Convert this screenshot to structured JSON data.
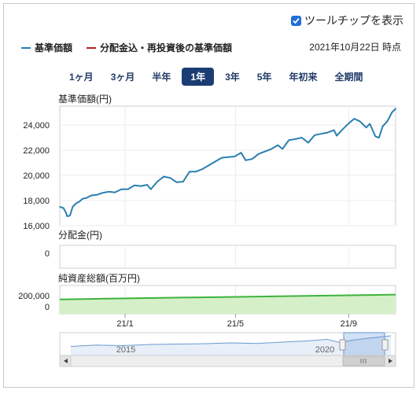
{
  "tooltip_toggle": {
    "label": "ツールチップを表示",
    "checked": true
  },
  "legend": [
    {
      "label": "基準価額",
      "color": "#2a7fb0"
    },
    {
      "label": "分配金込・再投資後の基準価額",
      "color": "#b22222"
    }
  ],
  "as_of": "2021年10月22日 時点",
  "periods": [
    {
      "label": "1ヶ月",
      "active": false
    },
    {
      "label": "3ヶ月",
      "active": false
    },
    {
      "label": "半年",
      "active": false
    },
    {
      "label": "1年",
      "active": true
    },
    {
      "label": "3年",
      "active": false
    },
    {
      "label": "5年",
      "active": false
    },
    {
      "label": "年初来",
      "active": false
    },
    {
      "label": "全期間",
      "active": false
    }
  ],
  "chart_data": [
    {
      "type": "line",
      "title": "基準価額(円)",
      "x_tick_labels": [
        "21/1",
        "21/5",
        "21/9"
      ],
      "ylim": [
        16000,
        25500
      ],
      "y_ticks": [
        "16,000",
        "18,000",
        "20,000",
        "22,000",
        "24,000"
      ],
      "y_tick_values": [
        16000,
        18000,
        20000,
        22000,
        24000
      ],
      "x_range": [
        "2020-10-22",
        "2021-10-22"
      ],
      "series": [
        {
          "name": "基準価額",
          "color": "#2a7fb0",
          "points": [
            [
              "2020-10-22",
              17500
            ],
            [
              "2020-10-26",
              17400
            ],
            [
              "2020-10-29",
              17000
            ],
            [
              "2020-10-30",
              16750
            ],
            [
              "2020-11-02",
              16800
            ],
            [
              "2020-11-05",
              17500
            ],
            [
              "2020-11-09",
              17800
            ],
            [
              "2020-11-12",
              17900
            ],
            [
              "2020-11-16",
              18150
            ],
            [
              "2020-11-20",
              18200
            ],
            [
              "2020-11-25",
              18400
            ],
            [
              "2020-12-01",
              18450
            ],
            [
              "2020-12-07",
              18600
            ],
            [
              "2020-12-14",
              18700
            ],
            [
              "2020-12-21",
              18650
            ],
            [
              "2020-12-28",
              18900
            ],
            [
              "2021-01-04",
              18900
            ],
            [
              "2021-01-11",
              19200
            ],
            [
              "2021-01-18",
              19150
            ],
            [
              "2021-01-25",
              19250
            ],
            [
              "2021-01-29",
              18900
            ],
            [
              "2021-02-05",
              19500
            ],
            [
              "2021-02-12",
              19900
            ],
            [
              "2021-02-19",
              19800
            ],
            [
              "2021-02-26",
              19450
            ],
            [
              "2021-03-05",
              19500
            ],
            [
              "2021-03-12",
              20300
            ],
            [
              "2021-03-19",
              20300
            ],
            [
              "2021-03-26",
              20500
            ],
            [
              "2021-04-02",
              20800
            ],
            [
              "2021-04-09",
              21100
            ],
            [
              "2021-04-16",
              21400
            ],
            [
              "2021-04-23",
              21450
            ],
            [
              "2021-04-30",
              21500
            ],
            [
              "2021-05-07",
              21800
            ],
            [
              "2021-05-12",
              21200
            ],
            [
              "2021-05-19",
              21300
            ],
            [
              "2021-05-26",
              21700
            ],
            [
              "2021-06-02",
              21900
            ],
            [
              "2021-06-09",
              22100
            ],
            [
              "2021-06-16",
              22400
            ],
            [
              "2021-06-21",
              22100
            ],
            [
              "2021-06-28",
              22800
            ],
            [
              "2021-07-06",
              22900
            ],
            [
              "2021-07-12",
              23000
            ],
            [
              "2021-07-19",
              22600
            ],
            [
              "2021-07-26",
              23200
            ],
            [
              "2021-08-02",
              23300
            ],
            [
              "2021-08-09",
              23400
            ],
            [
              "2021-08-16",
              23600
            ],
            [
              "2021-08-19",
              23150
            ],
            [
              "2021-08-26",
              23700
            ],
            [
              "2021-09-02",
              24200
            ],
            [
              "2021-09-07",
              24500
            ],
            [
              "2021-09-13",
              24300
            ],
            [
              "2021-09-20",
              23800
            ],
            [
              "2021-09-24",
              24100
            ],
            [
              "2021-09-30",
              23100
            ],
            [
              "2021-10-04",
              23000
            ],
            [
              "2021-10-08",
              23900
            ],
            [
              "2021-10-13",
              24300
            ],
            [
              "2021-10-18",
              25000
            ],
            [
              "2021-10-22",
              25300
            ]
          ]
        }
      ]
    },
    {
      "type": "bar",
      "title": "分配金(円)",
      "ylim": [
        0,
        1
      ],
      "y_ticks": [
        "0"
      ],
      "y_tick_values": [
        0
      ],
      "series": [
        {
          "name": "分配金",
          "values": []
        }
      ]
    },
    {
      "type": "area",
      "title": "純資産総額(百万円)",
      "y_ticks": [
        "200,000",
        "0"
      ],
      "y_tick_values": [
        200000,
        0
      ],
      "ylim": [
        0,
        560000
      ],
      "series": [
        {
          "name": "純資産総額",
          "color": "#3db33d",
          "fill": "#d5f0c8",
          "points": [
            [
              "2020-10-22",
              285000
            ],
            [
              "2020-12-01",
              295000
            ],
            [
              "2021-01-04",
              305000
            ],
            [
              "2021-03-01",
              320000
            ],
            [
              "2021-05-03",
              335000
            ],
            [
              "2021-07-01",
              350000
            ],
            [
              "2021-09-01",
              365000
            ],
            [
              "2021-10-22",
              380000
            ]
          ]
        }
      ]
    },
    {
      "type": "line",
      "title": "",
      "x_tick_labels": [
        "2015",
        "2020"
      ],
      "series": [
        {
          "name": "全期間",
          "color": "#6a9bd1",
          "points": [
            [
              0.0,
              0.62
            ],
            [
              0.08,
              0.55
            ],
            [
              0.16,
              0.58
            ],
            [
              0.25,
              0.52
            ],
            [
              0.33,
              0.5
            ],
            [
              0.42,
              0.48
            ],
            [
              0.5,
              0.44
            ],
            [
              0.58,
              0.47
            ],
            [
              0.66,
              0.4
            ],
            [
              0.74,
              0.34
            ],
            [
              0.8,
              0.26
            ],
            [
              0.84,
              0.42
            ],
            [
              0.88,
              0.3
            ],
            [
              0.92,
              0.22
            ],
            [
              1.0,
              0.08
            ]
          ]
        }
      ]
    }
  ]
}
